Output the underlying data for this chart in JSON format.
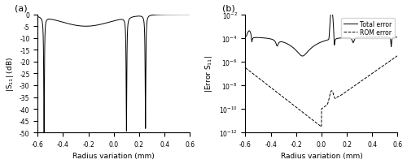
{
  "fig_width": 5.0,
  "fig_height": 2.03,
  "dpi": 100,
  "panel_a_label": "(a)",
  "panel_b_label": "(b)",
  "xlabel": "Radius variation (mm)",
  "ylabel_a": "|S$_{11}$| (dB)",
  "ylabel_b": "|Error S$_{11}$|",
  "xlim": [
    -0.6,
    0.6
  ],
  "ylim_a": [
    -50,
    0
  ],
  "ylim_b_log": [
    -12,
    -2
  ],
  "legend_total": "Total error",
  "legend_rom": "ROM error",
  "line_color": "#000000",
  "bg_color": "#ffffff",
  "xticks": [
    -0.6,
    -0.4,
    -0.2,
    0.0,
    0.2,
    0.4,
    0.6
  ],
  "yticks_a": [
    -50,
    -45,
    -40,
    -35,
    -30,
    -25,
    -20,
    -15,
    -10,
    -5,
    0
  ],
  "yticks_b_exp": [
    -12,
    -10,
    -8,
    -6,
    -4,
    -2
  ]
}
